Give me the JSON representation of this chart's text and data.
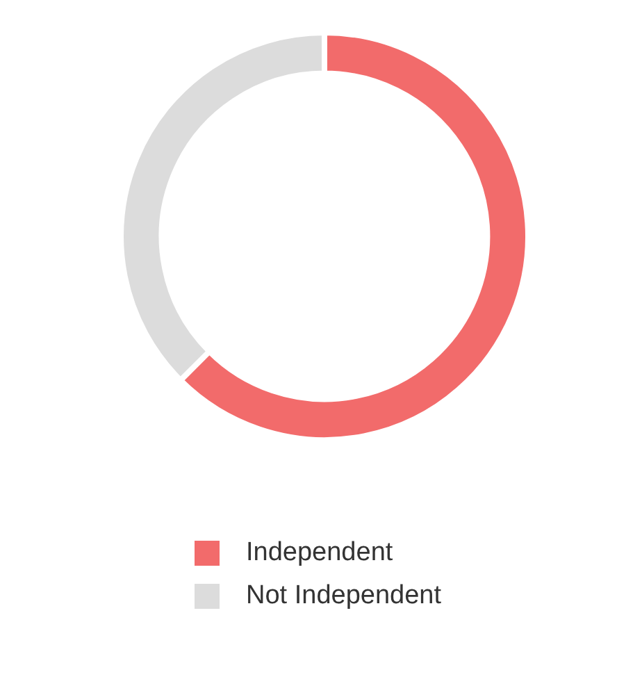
{
  "chart_data": {
    "type": "donut",
    "categories": [
      "Independent",
      "Not Independent"
    ],
    "values": [
      62.5,
      37.5
    ],
    "colors": [
      "#f26b6b",
      "#dcdcdc"
    ],
    "legend": "bottom"
  }
}
